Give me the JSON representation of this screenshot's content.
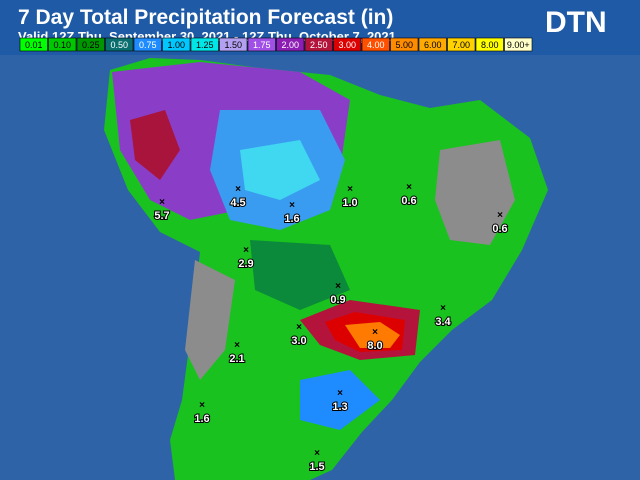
{
  "header": {
    "title": "7 Day Total Precipitation Forecast (in)",
    "subtitle": "Valid 12Z Thu, September 30, 2021 - 12Z Thu, October 7, 2021",
    "logo": "DTN"
  },
  "legend": [
    {
      "label": "0.01",
      "color": "#00ff00"
    },
    {
      "label": "0.10",
      "color": "#00c800"
    },
    {
      "label": "0.25",
      "color": "#009600"
    },
    {
      "label": "0.50",
      "color": "#0a6e6e"
    },
    {
      "label": "0.75",
      "color": "#1e8cff"
    },
    {
      "label": "1.00",
      "color": "#00c8ff"
    },
    {
      "label": "1.25",
      "color": "#00e6e6"
    },
    {
      "label": "1.50",
      "color": "#b4a0f0"
    },
    {
      "label": "1.75",
      "color": "#a050e6"
    },
    {
      "label": "2.00",
      "color": "#8c1eb4"
    },
    {
      "label": "2.50",
      "color": "#b4143c"
    },
    {
      "label": "3.00",
      "color": "#dc0000"
    },
    {
      "label": "4.00",
      "color": "#ff5000"
    },
    {
      "label": "5.00",
      "color": "#ff8c00"
    },
    {
      "label": "6.00",
      "color": "#ffaa00"
    },
    {
      "label": "7.00",
      "color": "#ffd200"
    },
    {
      "label": "8.00",
      "color": "#ffff00"
    },
    {
      "label": "9.00+",
      "color": "#ffffc8"
    }
  ],
  "points": [
    {
      "label": "5.7"
    },
    {
      "label": "4.5"
    },
    {
      "label": "1.6"
    },
    {
      "label": "1.0"
    },
    {
      "label": "0.6"
    },
    {
      "label": "0.6"
    },
    {
      "label": "2.9"
    },
    {
      "label": "0.9"
    },
    {
      "label": "3.4"
    },
    {
      "label": "3.0"
    },
    {
      "label": "8.0"
    },
    {
      "label": "2.1"
    },
    {
      "label": "1.6"
    },
    {
      "label": "1.3"
    },
    {
      "label": "1.5"
    }
  ]
}
